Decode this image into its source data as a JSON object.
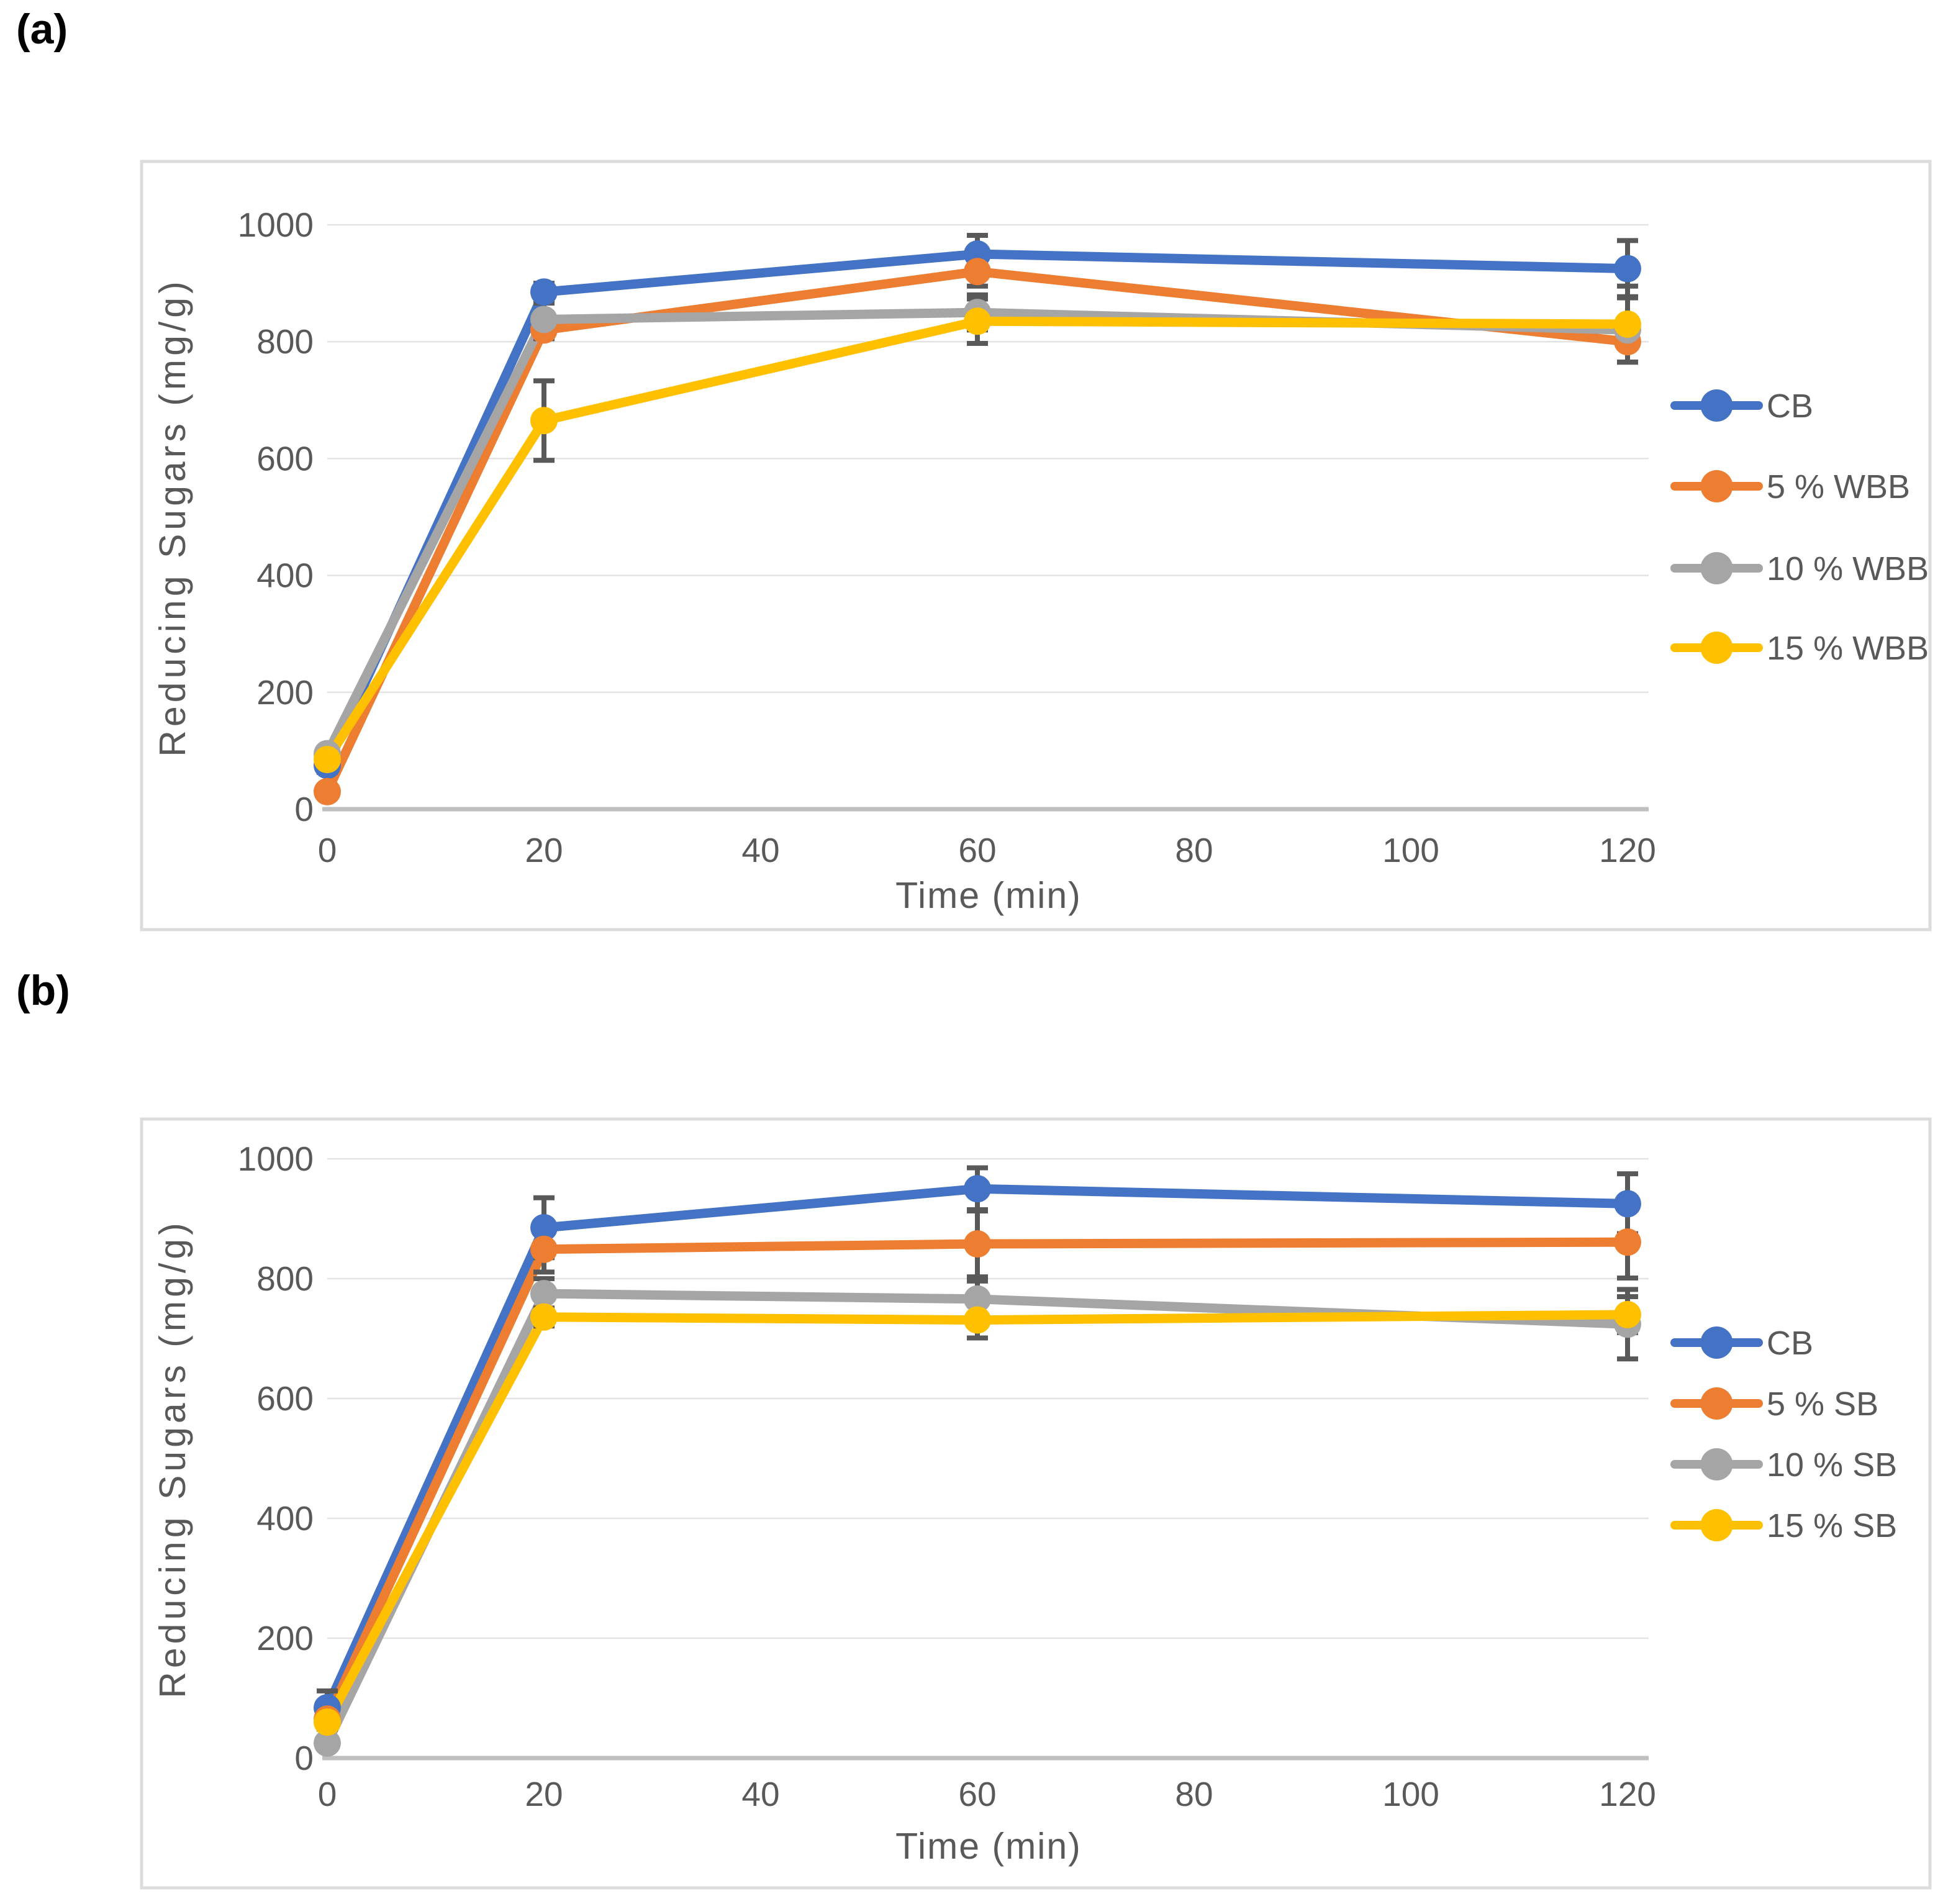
{
  "figure": {
    "panel_a_label": "(a)",
    "panel_b_label": "(b)"
  },
  "colors": {
    "blue": "#4472C4",
    "orange": "#ED7D31",
    "gray": "#A5A5A5",
    "yellow": "#FFC000",
    "error_bar": "#595959",
    "tick_text": "#595959",
    "axis_title_text": "#595959",
    "gridline": "#E3E3E3",
    "axis_line": "#BFBFBF",
    "panel_border": "#DCDCDC"
  },
  "chart_data": [
    {
      "panel": "a",
      "type": "line",
      "title": "",
      "xlabel": "Time (min)",
      "ylabel": "Reducing Sugars (mg/g)",
      "x": [
        0,
        20,
        60,
        120
      ],
      "x_ticks": [
        0,
        20,
        40,
        60,
        80,
        100,
        120
      ],
      "y_ticks": [
        0,
        200,
        400,
        600,
        800,
        1000
      ],
      "xlim": [
        0,
        130
      ],
      "ylim": [
        0,
        1060
      ],
      "grid": true,
      "legend_position": "right",
      "series": [
        {
          "name": "CB",
          "color": "#4472C4",
          "values": [
            75,
            885,
            950,
            925
          ],
          "errors": [
            12,
            15,
            32,
            48
          ]
        },
        {
          "name": "5 % WBB",
          "color": "#ED7D31",
          "values": [
            30,
            820,
            920,
            800
          ],
          "errors": [
            10,
            15,
            25,
            35
          ]
        },
        {
          "name": "10 % WBB",
          "color": "#A5A5A5",
          "values": [
            95,
            838,
            850,
            820
          ],
          "errors": [
            10,
            28,
            30,
            55
          ]
        },
        {
          "name": "15 % WBB",
          "color": "#FFC000",
          "values": [
            85,
            665,
            835,
            830
          ],
          "errors": [
            10,
            68,
            38,
            65
          ]
        }
      ]
    },
    {
      "panel": "b",
      "type": "line",
      "title": "",
      "xlabel": "Time (min)",
      "ylabel": "Reducing Sugars (mg/g)",
      "x": [
        0,
        20,
        60,
        120
      ],
      "x_ticks": [
        0,
        20,
        40,
        60,
        80,
        100,
        120
      ],
      "y_ticks": [
        0,
        200,
        400,
        600,
        800,
        1000
      ],
      "xlim": [
        0,
        130
      ],
      "ylim": [
        0,
        1060
      ],
      "grid": true,
      "legend_position": "right",
      "series": [
        {
          "name": "CB",
          "color": "#4472C4",
          "values": [
            84,
            885,
            950,
            925
          ],
          "errors": [
            28,
            50,
            35,
            50
          ]
        },
        {
          "name": "5 % SB",
          "color": "#ED7D31",
          "values": [
            65,
            849,
            858,
            861
          ],
          "errors": [
            12,
            38,
            55,
            60
          ]
        },
        {
          "name": "10 % SB",
          "color": "#A5A5A5",
          "values": [
            25,
            775,
            766,
            724
          ],
          "errors": [
            10,
            25,
            30,
            58
          ]
        },
        {
          "name": "15 % SB",
          "color": "#FFC000",
          "values": [
            60,
            736,
            731,
            740
          ],
          "errors": [
            12,
            15,
            30,
            30
          ]
        }
      ]
    }
  ]
}
